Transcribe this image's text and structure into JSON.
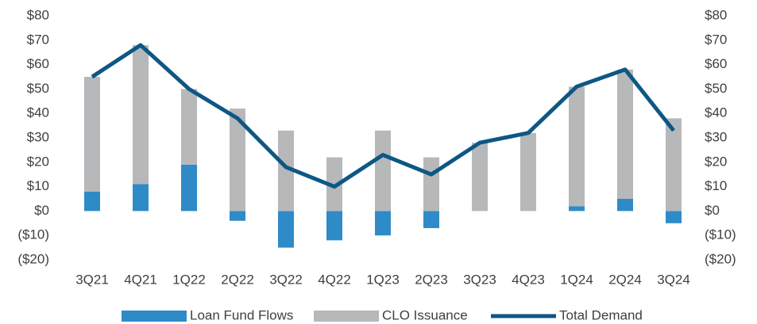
{
  "chart_data": {
    "type": "combo",
    "categories": [
      "3Q21",
      "4Q21",
      "1Q22",
      "2Q22",
      "3Q22",
      "4Q22",
      "1Q23",
      "2Q23",
      "3Q23",
      "4Q23",
      "1Q24",
      "2Q24",
      "3Q24"
    ],
    "series": [
      {
        "name": "Loan Fund Flows",
        "type": "bar",
        "color": "#2e8bc8",
        "values": [
          8,
          11,
          19,
          -4,
          -15,
          -12,
          -10,
          -7,
          0,
          0,
          2,
          5,
          -5
        ]
      },
      {
        "name": "CLO Issuance",
        "type": "bar",
        "color": "#b7b8ba",
        "values": [
          47,
          57,
          31,
          42,
          33,
          22,
          33,
          22,
          28,
          32,
          49,
          53,
          38
        ]
      },
      {
        "name": "Total Demand",
        "type": "line",
        "axis": "y2",
        "color": "#0d5785",
        "values": [
          55,
          68,
          50,
          38,
          18,
          10,
          23,
          15,
          28,
          32,
          51,
          58,
          33
        ]
      }
    ],
    "stacked": true,
    "ylim": [
      -20,
      80
    ],
    "yticks": [
      {
        "value": -20,
        "label": "($20)"
      },
      {
        "value": -10,
        "label": "($10)"
      },
      {
        "value": 0,
        "label": "$0"
      },
      {
        "value": 10,
        "label": "$10"
      },
      {
        "value": 20,
        "label": "$20"
      },
      {
        "value": 30,
        "label": "$30"
      },
      {
        "value": 40,
        "label": "$40"
      },
      {
        "value": 50,
        "label": "$50"
      },
      {
        "value": 60,
        "label": "$60"
      },
      {
        "value": 70,
        "label": "$70"
      },
      {
        "value": 80,
        "label": "$80"
      }
    ],
    "y2lim": [
      -20,
      80
    ],
    "y2ticks": [
      {
        "value": -20,
        "label": "($20)"
      },
      {
        "value": -10,
        "label": "($10)"
      },
      {
        "value": 0,
        "label": "$0"
      },
      {
        "value": 10,
        "label": "$10"
      },
      {
        "value": 20,
        "label": "$20"
      },
      {
        "value": 30,
        "label": "$30"
      },
      {
        "value": 40,
        "label": "$40"
      },
      {
        "value": 50,
        "label": "$50"
      },
      {
        "value": 60,
        "label": "$60"
      },
      {
        "value": 70,
        "label": "$70"
      },
      {
        "value": 80,
        "label": "$80"
      }
    ],
    "legend": "bottom"
  }
}
